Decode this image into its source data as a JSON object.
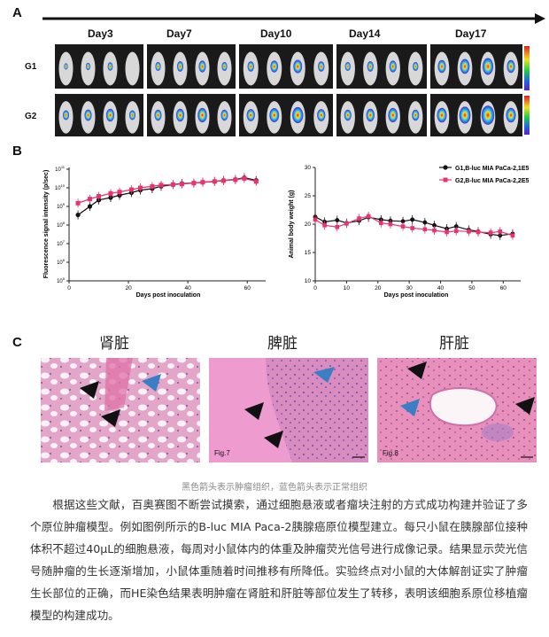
{
  "panel_a": {
    "letter": "A",
    "days": [
      "Day3",
      "Day7",
      "Day10",
      "Day14",
      "Day17"
    ],
    "groups": [
      "G1",
      "G2"
    ]
  },
  "panel_b": {
    "letter": "B",
    "left_chart": {
      "ylabel": "Fluorescence signal intensity (p/sec)",
      "xlabel": "Days post inoculation",
      "yticks": [
        "10^11",
        "10^9",
        "10^8",
        "10^7",
        "10^6",
        "10^5"
      ],
      "xticks": [
        "0",
        "20",
        "40",
        "60"
      ]
    },
    "right_chart": {
      "ylabel": "Animal body weight (g)",
      "xlabel": "Days post inoculation",
      "yticks": [
        "30",
        "25",
        "20",
        "15",
        "10"
      ],
      "xticks": [
        "0",
        "10",
        "20",
        "30",
        "40",
        "50",
        "60"
      ],
      "legend": [
        "G1,B-luc MIA PaCa-2,1E5",
        "G2,B-luc MIA PaCa-2,2E5"
      ]
    }
  },
  "chart_data": [
    {
      "type": "line",
      "xlabel": "Days post inoculation",
      "ylabel": "Fluorescence signal intensity (p/sec)",
      "yscale": "log",
      "ylim": [
        100000,
        100000000000
      ],
      "xlim": [
        0,
        65
      ],
      "series": [
        {
          "name": "G1,B-luc MIA PaCa-2,1E5",
          "color": "#111111",
          "x": [
            3,
            7,
            10,
            14,
            17,
            21,
            24,
            28,
            31,
            35,
            38,
            42,
            45,
            49,
            52,
            56,
            59,
            63
          ],
          "y": [
            350000000,
            1000000000,
            2200000000,
            3000000000,
            4000000000,
            5500000000,
            7500000000,
            9000000000,
            12000000000,
            15000000000,
            17000000000,
            18000000000,
            20000000000,
            22000000000,
            25000000000,
            28000000000,
            35000000000,
            25000000000
          ]
        },
        {
          "name": "G2,B-luc MIA PaCa-2,2E5",
          "color": "#e8336d",
          "x": [
            3,
            7,
            10,
            14,
            17,
            21,
            24,
            28,
            31,
            35,
            38,
            42,
            45,
            49,
            52,
            56,
            59,
            63
          ],
          "y": [
            1500000000,
            2500000000,
            3500000000,
            5000000000,
            6000000000,
            8000000000,
            10000000000,
            12000000000,
            14000000000,
            15000000000,
            16000000000,
            18000000000,
            20000000000,
            22000000000,
            24000000000,
            27000000000,
            32000000000,
            22000000000
          ]
        }
      ]
    },
    {
      "type": "line",
      "xlabel": "Days post inoculation",
      "ylabel": "Animal body weight (g)",
      "ylim": [
        10,
        30
      ],
      "xlim": [
        0,
        65
      ],
      "series": [
        {
          "name": "G1,B-luc MIA PaCa-2,1E5",
          "color": "#111111",
          "x": [
            0,
            3,
            7,
            10,
            14,
            17,
            21,
            24,
            28,
            31,
            35,
            38,
            42,
            45,
            49,
            52,
            56,
            59,
            63
          ],
          "y": [
            21.3,
            20.4,
            20.7,
            20.2,
            20.6,
            21.2,
            20.8,
            20.6,
            20.5,
            20.8,
            20.3,
            19.8,
            19.2,
            19.6,
            19.0,
            18.7,
            18.2,
            18.0,
            18.3
          ]
        },
        {
          "name": "G2,B-luc MIA PaCa-2,2E5",
          "color": "#e8336d",
          "x": [
            0,
            3,
            7,
            10,
            14,
            17,
            21,
            24,
            28,
            31,
            35,
            38,
            42,
            45,
            49,
            52,
            56,
            59,
            63
          ],
          "y": [
            20.8,
            19.8,
            19.5,
            20.1,
            21.0,
            21.4,
            20.2,
            20.0,
            19.6,
            19.3,
            19.1,
            18.9,
            18.6,
            18.8,
            18.7,
            18.6,
            18.5,
            18.7,
            18.0
          ]
        }
      ]
    }
  ],
  "panel_c": {
    "letter": "C",
    "organs": [
      "肾脏",
      "脾脏",
      "肝脏"
    ],
    "fig_labels": [
      "Fig.7",
      "Fig.8"
    ]
  },
  "caption": "黑色箭头表示肿瘤组织，蓝色箭头表示正常组织",
  "body_text": "根据这些文献，百奥赛图不断尝试摸索，通过细胞悬液或者瘤块注射的方式成功构建并验证了多个原位肿瘤模型。例如图例所示的B-luc MIA Paca-2胰腺癌原位模型建立。每只小鼠在胰腺部位接种体积不超过40μL的细胞悬液，每周对小鼠体内的体重及肿瘤荧光信号进行成像记录。结果显示荧光信号随肿瘤的生长逐渐增加，小鼠体重随着时间推移有所降低。实验终点对小鼠的大体解剖证实了肿瘤生长部位的正确，而HE染色结果表明肿瘤在肾脏和肝脏等部位发生了转移，表明该细胞系原位移植瘤模型的构建成功。",
  "colors": {
    "g1": "#111111",
    "g2": "#e8336d",
    "he_pink": "#e8a8c8",
    "arrow_blue": "#3a7fc4"
  }
}
